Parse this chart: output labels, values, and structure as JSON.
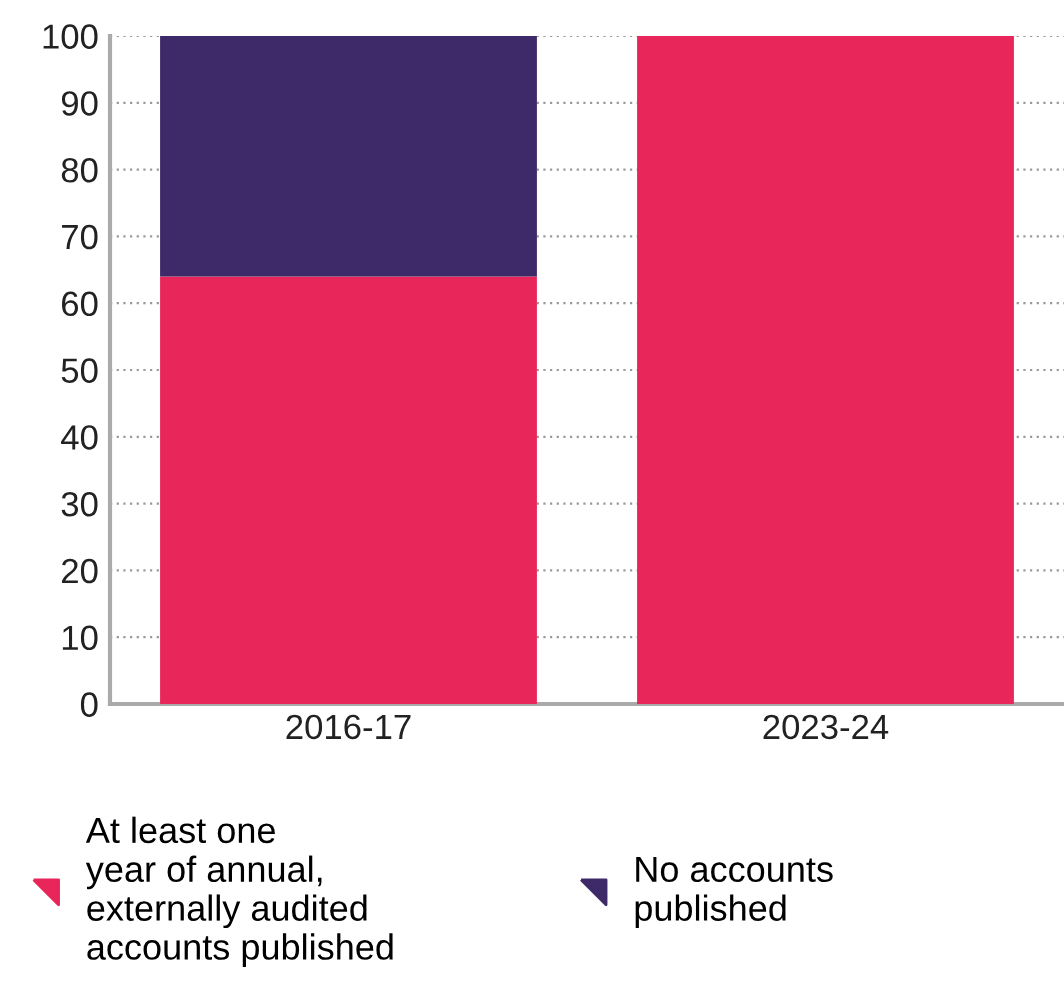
{
  "chart_data": {
    "type": "bar",
    "stacked": true,
    "categories": [
      "2016-17",
      "2023-24"
    ],
    "series": [
      {
        "name": "At least one\nyear of annual,\nexternally audited\naccounts published",
        "color": "#e8265a",
        "values": [
          64,
          100
        ]
      },
      {
        "name": "No accounts\npublished",
        "color": "#3e2a68",
        "values": [
          36,
          0
        ]
      }
    ],
    "ylim": [
      0,
      100
    ],
    "yticks": [
      0,
      10,
      20,
      30,
      40,
      50,
      60,
      70,
      80,
      90,
      100
    ],
    "grid": "y",
    "legend": "bottom"
  }
}
